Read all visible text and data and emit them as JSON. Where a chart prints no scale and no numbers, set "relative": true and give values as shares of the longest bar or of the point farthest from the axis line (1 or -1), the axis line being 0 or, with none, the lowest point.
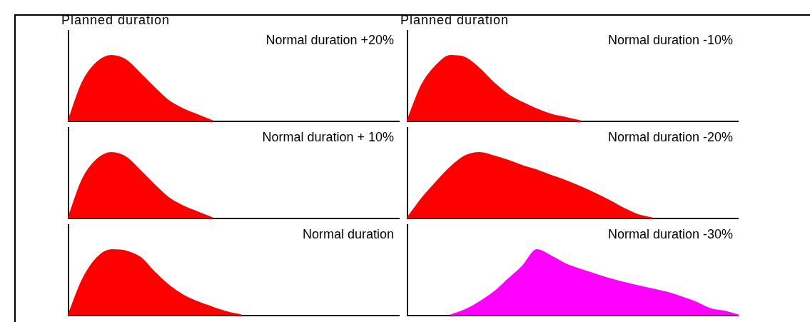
{
  "chart_data": [
    {
      "type": "area",
      "title": "Planned duration",
      "relative": true,
      "tick_labels": false,
      "legend": false,
      "color": "#ff0000",
      "annotations": [
        "Normal duration +20%"
      ],
      "categories": [
        null,
        null,
        null,
        null,
        null,
        null,
        null,
        null,
        null,
        null,
        null,
        null,
        null,
        null,
        null,
        null,
        null,
        null,
        null,
        null,
        null,
        null,
        null,
        null
      ],
      "values": [
        0,
        0.6,
        0.9,
        1.0,
        0.93,
        0.72,
        0.5,
        0.3,
        0.18,
        0.09,
        0.0,
        null,
        null,
        null,
        null,
        null,
        null,
        null,
        null,
        null,
        null,
        null,
        null,
        null
      ]
    },
    {
      "type": "area",
      "title": "Planned duration",
      "relative": true,
      "tick_labels": false,
      "legend": false,
      "color": "#ff0000",
      "annotations": [
        "Normal duration -10%"
      ],
      "categories": [
        null,
        null,
        null,
        null,
        null,
        null,
        null,
        null,
        null,
        null,
        null,
        null,
        null,
        null,
        null,
        null,
        null,
        null,
        null,
        null,
        null,
        null,
        null,
        null
      ],
      "values": [
        0,
        0.55,
        0.85,
        1.0,
        0.97,
        0.8,
        0.58,
        0.4,
        0.28,
        0.18,
        0.1,
        0.05,
        0.0,
        null,
        null,
        null,
        null,
        null,
        null,
        null,
        null,
        null,
        null,
        null
      ]
    },
    {
      "type": "area",
      "relative": true,
      "tick_labels": false,
      "legend": false,
      "color": "#ff0000",
      "annotations": [
        "Normal duration + 10%"
      ],
      "categories": [
        null,
        null,
        null,
        null,
        null,
        null,
        null,
        null,
        null,
        null,
        null,
        null,
        null,
        null,
        null,
        null,
        null,
        null,
        null,
        null,
        null,
        null,
        null,
        null
      ],
      "values": [
        0,
        0.6,
        0.9,
        1.0,
        0.93,
        0.72,
        0.5,
        0.3,
        0.18,
        0.09,
        0.0,
        null,
        null,
        null,
        null,
        null,
        null,
        null,
        null,
        null,
        null,
        null,
        null,
        null
      ]
    },
    {
      "type": "area",
      "relative": true,
      "tick_labels": false,
      "legend": false,
      "color": "#ff0000",
      "annotations": [
        "Normal duration -20%"
      ],
      "categories": [
        null,
        null,
        null,
        null,
        null,
        null,
        null,
        null,
        null,
        null,
        null,
        null,
        null,
        null,
        null,
        null,
        null,
        null,
        null,
        null,
        null,
        null,
        null,
        null
      ],
      "values": [
        0,
        0.3,
        0.55,
        0.78,
        0.95,
        1.0,
        0.95,
        0.88,
        0.8,
        0.73,
        0.65,
        0.57,
        0.48,
        0.38,
        0.27,
        0.15,
        0.05,
        0.0,
        null,
        null,
        null,
        null,
        null,
        null
      ]
    },
    {
      "type": "area",
      "relative": true,
      "tick_labels": false,
      "legend": false,
      "color": "#ff0000",
      "annotations": [
        "Normal duration"
      ],
      "categories": [
        null,
        null,
        null,
        null,
        null,
        null,
        null,
        null,
        null,
        null,
        null,
        null,
        null,
        null,
        null,
        null,
        null,
        null,
        null,
        null,
        null,
        null,
        null,
        null
      ],
      "values": [
        0,
        0.55,
        0.88,
        1.0,
        0.98,
        0.88,
        0.65,
        0.45,
        0.3,
        0.2,
        0.12,
        0.05,
        0.0,
        null,
        null,
        null,
        null,
        null,
        null,
        null,
        null,
        null,
        null,
        null
      ]
    },
    {
      "type": "area",
      "relative": true,
      "tick_labels": false,
      "legend": false,
      "color": "#ff00ff",
      "annotations": [
        "Normal duration -30%"
      ],
      "categories": [
        null,
        null,
        null,
        null,
        null,
        null,
        null,
        null,
        null,
        null,
        null,
        null,
        null,
        null,
        null,
        null,
        null,
        null,
        null,
        null,
        null,
        null,
        null,
        null
      ],
      "values": [
        null,
        null,
        null,
        0,
        0.08,
        0.2,
        0.35,
        0.55,
        0.75,
        1.0,
        0.9,
        0.78,
        0.7,
        0.63,
        0.56,
        0.5,
        0.45,
        0.4,
        0.35,
        0.28,
        0.2,
        0.1,
        0.06,
        0.0
      ]
    }
  ]
}
